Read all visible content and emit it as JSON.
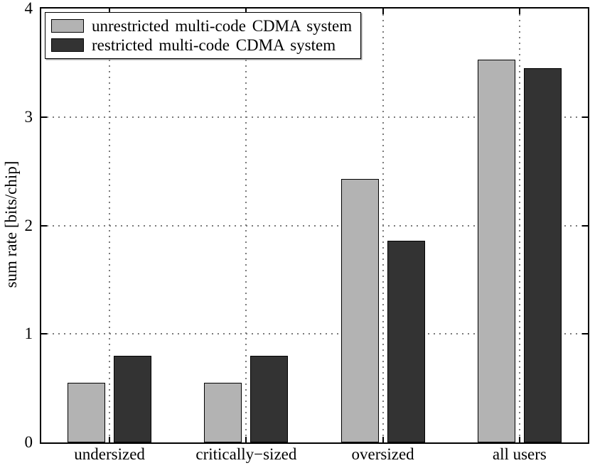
{
  "chart_data": {
    "type": "bar",
    "title": "",
    "xlabel": "",
    "ylabel": "sum rate [bits/chip]",
    "ylim": [
      0,
      4
    ],
    "yticks": [
      0,
      1,
      2,
      3,
      4
    ],
    "grid": true,
    "grid_style": "dotted",
    "legend_position": "top-left",
    "categories": [
      "undersized",
      "critically−sized",
      "oversized",
      "all users"
    ],
    "series": [
      {
        "name": "unrestricted multi-code CDMA system",
        "color": "#b3b3b3",
        "values": [
          0.55,
          0.55,
          2.43,
          3.53
        ]
      },
      {
        "name": "restricted multi-code CDMA system",
        "color": "#333333",
        "values": [
          0.8,
          0.8,
          1.86,
          3.45
        ]
      }
    ],
    "bar_edge_color": "#000000",
    "axis_color": "#000000",
    "grid_color": "#7b7b7b",
    "background_color": "#ffffff"
  }
}
